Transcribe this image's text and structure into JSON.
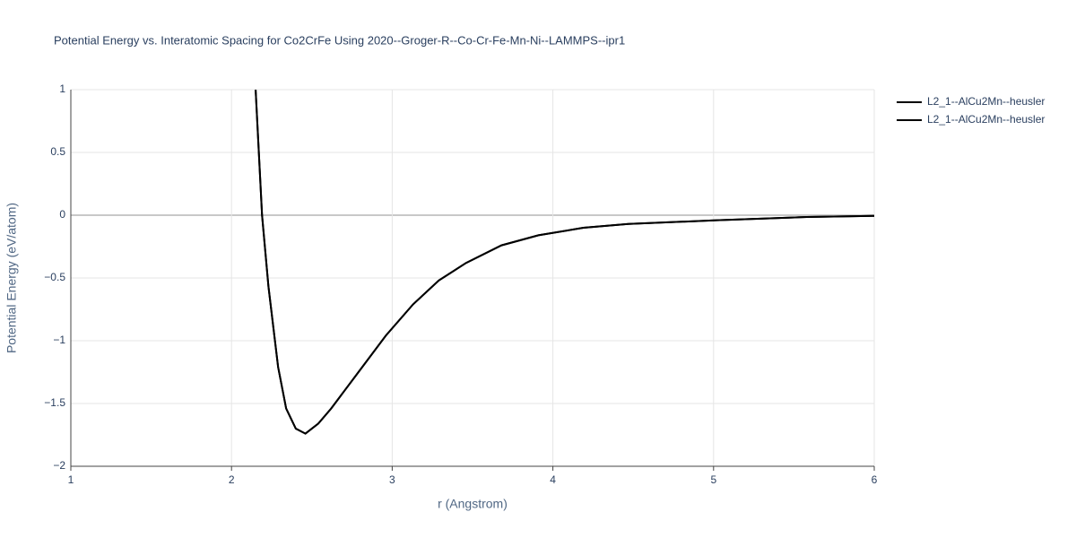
{
  "chart_data": {
    "type": "line",
    "title": "Potential Energy vs. Interatomic Spacing for Co2CrFe Using 2020--Groger-R--Co-Cr-Fe-Mn-Ni--LAMMPS--ipr1",
    "x_label": "r (Angstrom)",
    "y_label": "Potential Energy (eV/atom)",
    "x": [
      2.15,
      2.19,
      2.23,
      2.29,
      2.34,
      2.4,
      2.46,
      2.54,
      2.62,
      2.79,
      2.96,
      3.13,
      3.29,
      3.46,
      3.68,
      3.91,
      4.19,
      4.47,
      5.02,
      5.58,
      6.0
    ],
    "series": [
      {
        "name": "L2_1--AlCu2Mn--heusler",
        "color": "#000000",
        "values": [
          1.0,
          0.0,
          -0.57,
          -1.21,
          -1.54,
          -1.7,
          -1.74,
          -1.66,
          -1.54,
          -1.25,
          -0.96,
          -0.71,
          -0.52,
          -0.38,
          -0.24,
          -0.16,
          -0.1,
          -0.07,
          -0.04,
          -0.014,
          -0.005
        ]
      },
      {
        "name": "L2_1--AlCu2Mn--heusler",
        "color": "#000000",
        "values": [
          1.0,
          0.0,
          -0.57,
          -1.21,
          -1.54,
          -1.7,
          -1.74,
          -1.66,
          -1.54,
          -1.25,
          -0.96,
          -0.71,
          -0.52,
          -0.38,
          -0.24,
          -0.16,
          -0.1,
          -0.07,
          -0.04,
          -0.014,
          -0.005
        ]
      }
    ],
    "xlim": [
      1,
      6
    ],
    "xticks": [
      1,
      2,
      3,
      4,
      5,
      6
    ],
    "ylim": [
      -2,
      1
    ],
    "yticks": [
      {
        "value": -2,
        "label": "−2"
      },
      {
        "value": -1.5,
        "label": "−1.5"
      },
      {
        "value": -1,
        "label": "−1"
      },
      {
        "value": -0.5,
        "label": "−0.5"
      },
      0,
      0.5,
      1
    ],
    "grid": true
  }
}
